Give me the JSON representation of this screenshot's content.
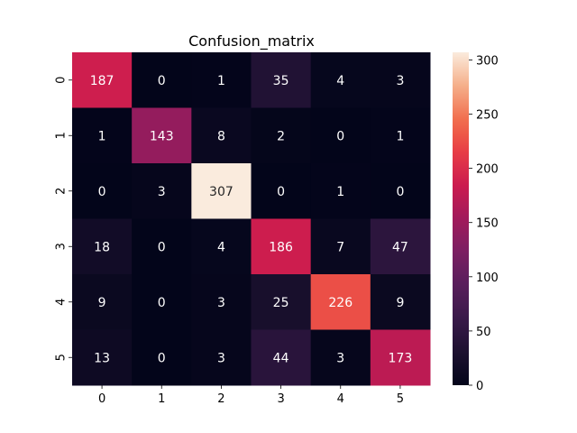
{
  "chart_data": {
    "type": "heatmap",
    "title": "Confusion_matrix",
    "xlabel": "",
    "ylabel": "",
    "x_categories": [
      "0",
      "1",
      "2",
      "3",
      "4",
      "5"
    ],
    "y_categories": [
      "0",
      "1",
      "2",
      "3",
      "4",
      "5"
    ],
    "values": [
      [
        187,
        0,
        1,
        35,
        4,
        3
      ],
      [
        1,
        143,
        8,
        2,
        0,
        1
      ],
      [
        0,
        3,
        307,
        0,
        1,
        0
      ],
      [
        18,
        0,
        4,
        186,
        7,
        47
      ],
      [
        9,
        0,
        3,
        25,
        226,
        9
      ],
      [
        13,
        0,
        3,
        44,
        3,
        173
      ]
    ],
    "colorbar": {
      "min": 0,
      "max": 307,
      "ticks": [
        0,
        50,
        100,
        150,
        200,
        250,
        300
      ]
    },
    "colormap": "rocket"
  }
}
